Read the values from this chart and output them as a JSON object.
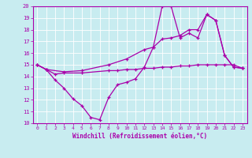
{
  "xlabel": "Windchill (Refroidissement éolien,°C)",
  "ylabel": "",
  "ylim": [
    10,
    20
  ],
  "xlim": [
    -0.5,
    23.5
  ],
  "yticks": [
    10,
    11,
    12,
    13,
    14,
    15,
    16,
    17,
    18,
    19,
    20
  ],
  "xticks": [
    0,
    1,
    2,
    3,
    4,
    5,
    6,
    7,
    8,
    9,
    10,
    11,
    12,
    13,
    14,
    15,
    16,
    17,
    18,
    19,
    20,
    21,
    22,
    23
  ],
  "bg_color": "#c8ecf0",
  "line_color": "#aa00aa",
  "grid_color": "#ffffff",
  "line1_x": [
    0,
    1,
    2,
    3,
    4,
    5,
    6,
    7,
    8,
    9,
    10,
    11,
    12,
    13,
    14,
    15,
    16,
    17,
    18,
    19,
    20,
    21,
    22,
    23
  ],
  "line1_y": [
    15.0,
    14.6,
    13.7,
    13.0,
    12.1,
    11.5,
    10.5,
    10.3,
    12.2,
    13.3,
    13.5,
    13.8,
    14.8,
    16.5,
    20.0,
    20.0,
    17.3,
    17.7,
    17.3,
    19.3,
    18.8,
    15.8,
    14.8,
    14.7
  ],
  "line2_x": [
    0,
    1,
    2,
    3,
    5,
    8,
    9,
    10,
    11,
    12,
    13,
    14,
    15,
    16,
    17,
    18,
    19,
    20,
    21,
    22,
    23
  ],
  "line2_y": [
    15.0,
    14.6,
    14.2,
    14.3,
    14.3,
    14.5,
    14.5,
    14.6,
    14.6,
    14.7,
    14.7,
    14.8,
    14.8,
    14.9,
    14.9,
    15.0,
    15.0,
    15.0,
    15.0,
    15.0,
    14.7
  ],
  "line3_x": [
    0,
    1,
    3,
    5,
    8,
    10,
    12,
    13,
    14,
    15,
    16,
    17,
    18,
    19,
    20,
    21,
    22,
    23
  ],
  "line3_y": [
    15.0,
    14.6,
    14.4,
    14.5,
    15.0,
    15.5,
    16.3,
    16.5,
    17.2,
    17.3,
    17.5,
    18.0,
    18.0,
    19.3,
    18.8,
    15.8,
    14.8,
    14.7
  ]
}
